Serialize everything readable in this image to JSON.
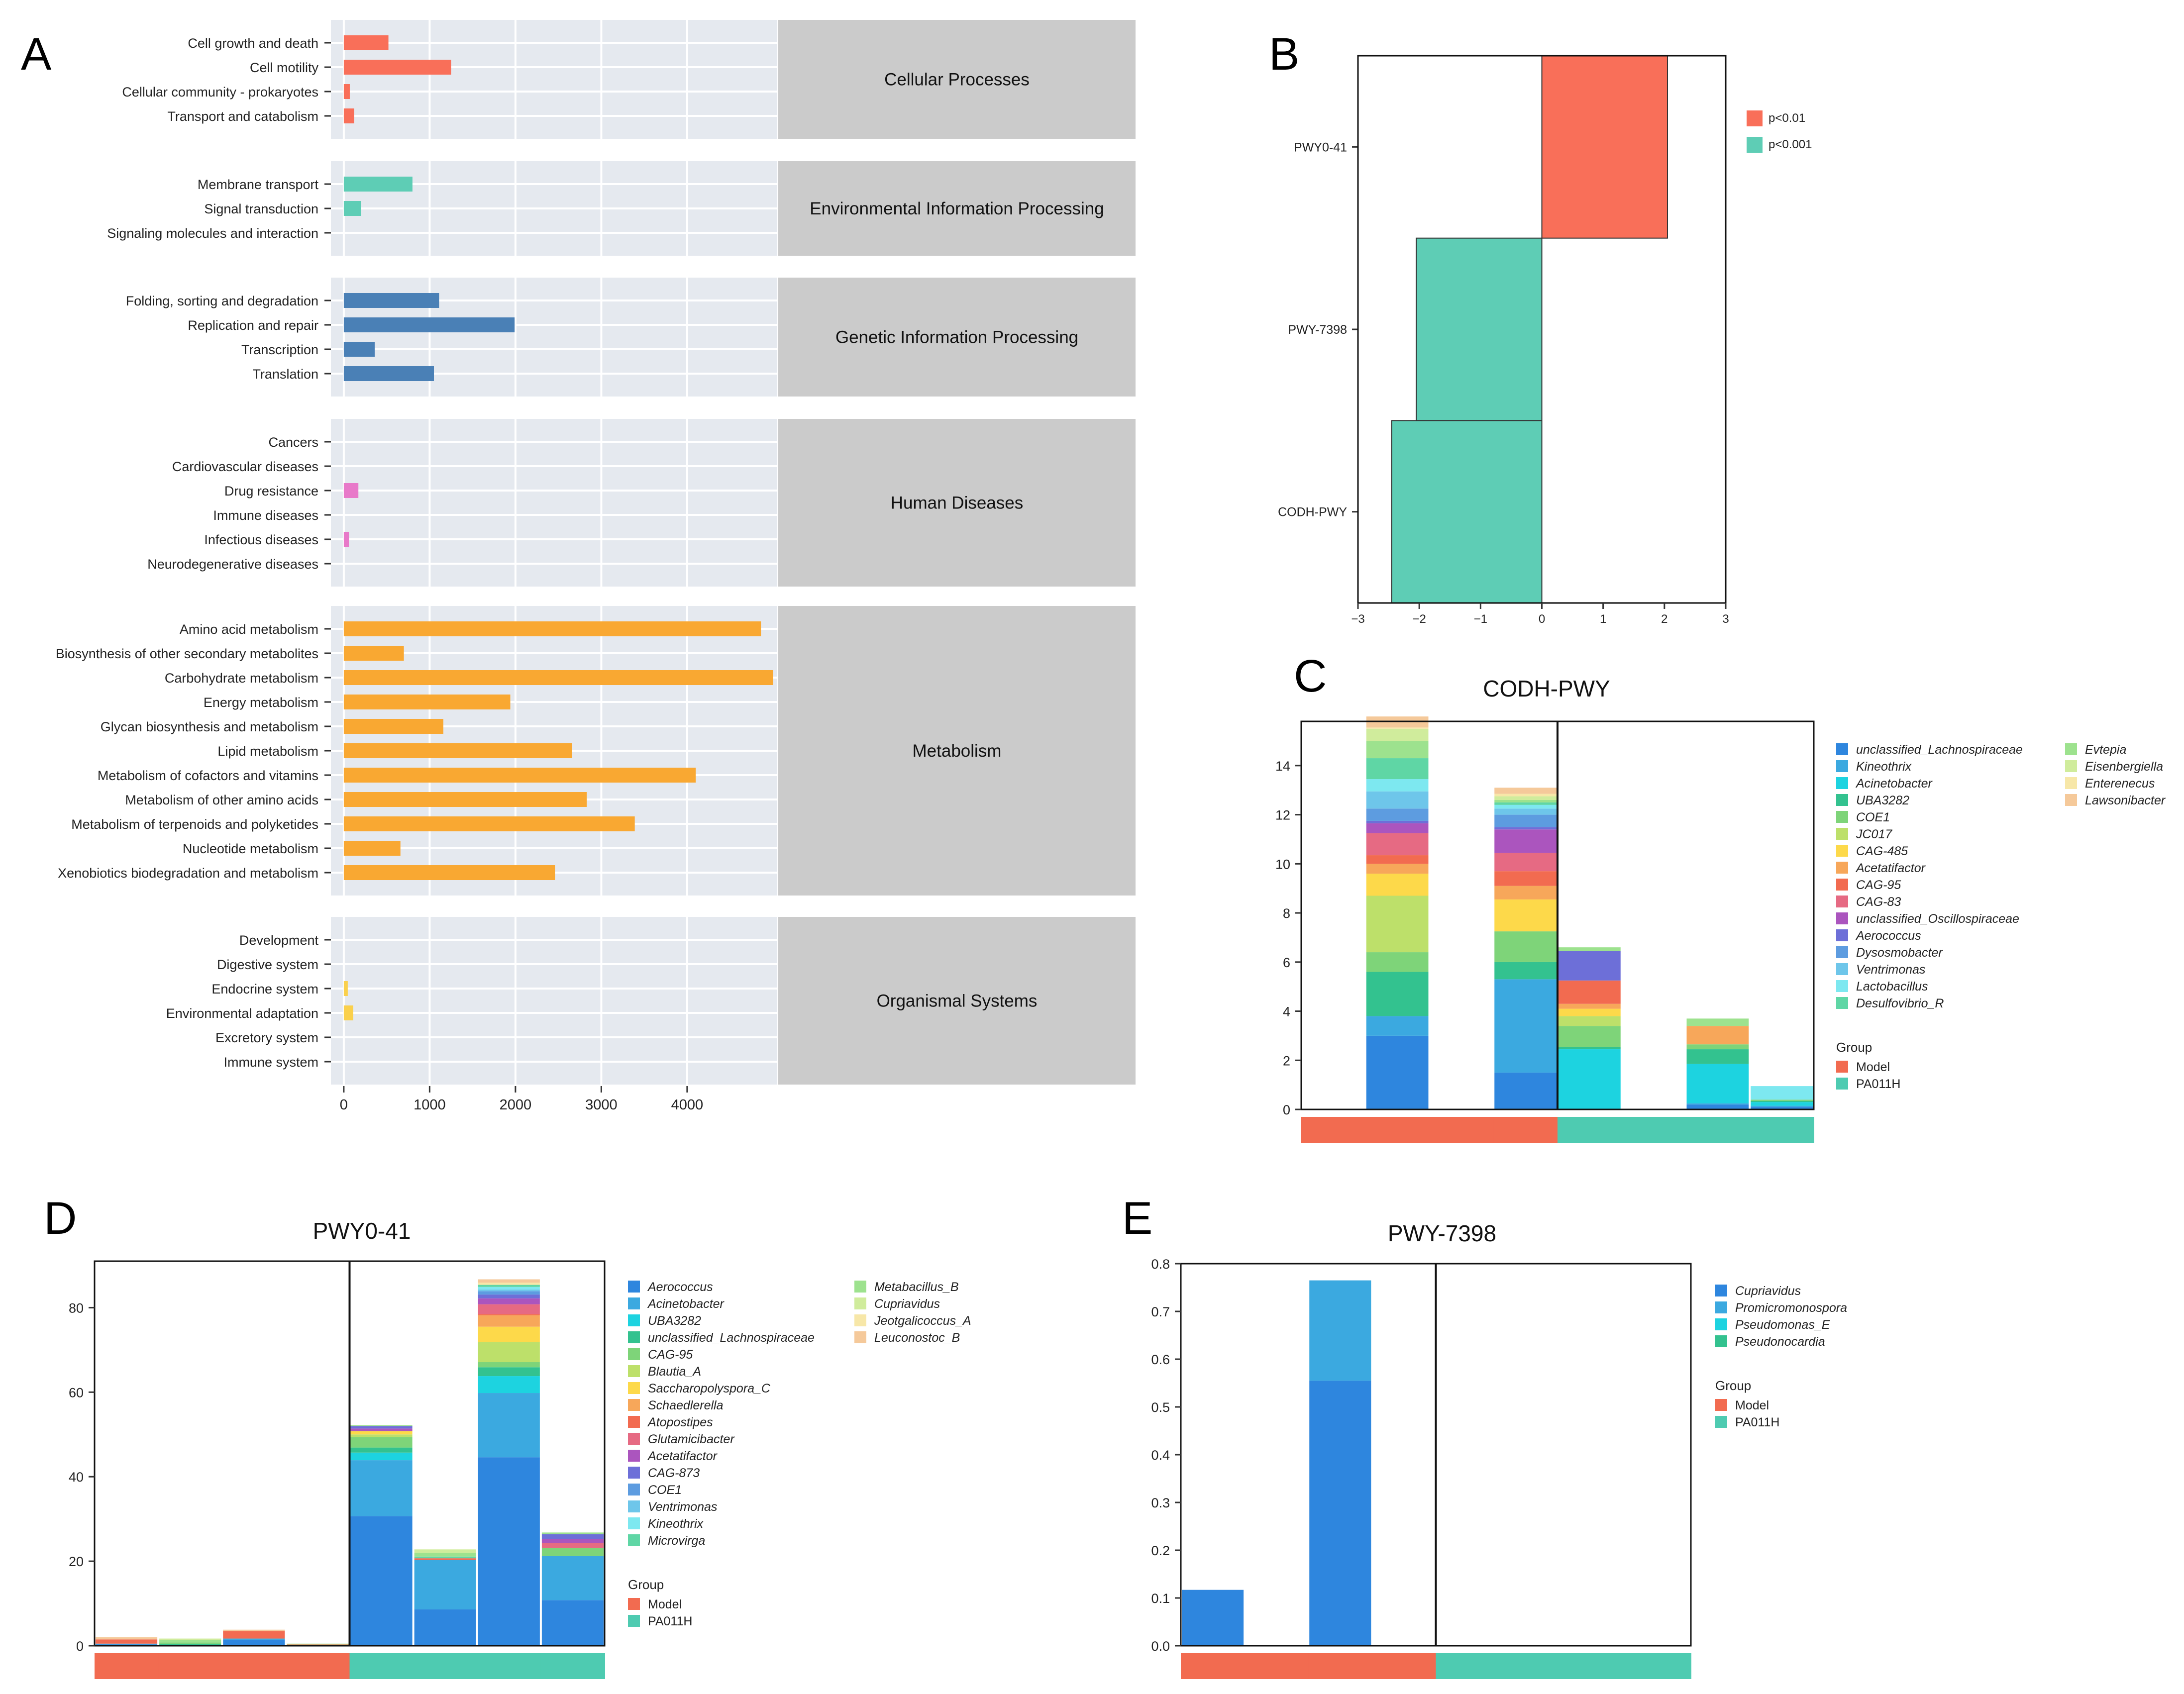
{
  "colors": {
    "model": "#F26B50",
    "pa011h": "#4ECBB1",
    "panel_bg": "#E5E9EF",
    "cat_bg": "#CBCBCB",
    "cellular": "#F96F59",
    "environmental": "#5ECDB5",
    "genetic": "#4A80B6",
    "human": "#E879C9",
    "metabolism": "#F9A832",
    "organismal": "#FAD04C"
  },
  "chart_data": [
    {
      "panel": "A",
      "type": "bar",
      "orientation": "horizontal",
      "xticks": [
        "0",
        "1000",
        "2000",
        "3000",
        "4000"
      ],
      "xlim": [
        -150,
        5050
      ],
      "groups": [
        {
          "name": "Cellular Processes",
          "color_key": "cellular",
          "items": [
            {
              "label": "Cell growth and death",
              "value": 520
            },
            {
              "label": "Cell motility",
              "value": 1250
            },
            {
              "label": "Cellular community - prokaryotes",
              "value": 70
            },
            {
              "label": "Transport and catabolism",
              "value": 120
            }
          ]
        },
        {
          "name": "Environmental Information Processing",
          "color_key": "environmental",
          "items": [
            {
              "label": "Membrane transport",
              "value": 800
            },
            {
              "label": "Signal transduction",
              "value": 200
            },
            {
              "label": "Signaling molecules and interaction",
              "value": 0
            }
          ]
        },
        {
          "name": "Genetic Information Processing",
          "color_key": "genetic",
          "items": [
            {
              "label": "Folding, sorting and degradation",
              "value": 1110
            },
            {
              "label": "Replication and repair",
              "value": 1990
            },
            {
              "label": "Transcription",
              "value": 360
            },
            {
              "label": "Translation",
              "value": 1050
            }
          ]
        },
        {
          "name": "Human Diseases",
          "color_key": "human",
          "items": [
            {
              "label": "Cancers",
              "value": 0
            },
            {
              "label": "Cardiovascular diseases",
              "value": 0
            },
            {
              "label": "Drug resistance",
              "value": 170
            },
            {
              "label": "Immune diseases",
              "value": 0
            },
            {
              "label": "Infectious diseases",
              "value": 60
            },
            {
              "label": "Neurodegenerative diseases",
              "value": 0
            }
          ]
        },
        {
          "name": "Metabolism",
          "color_key": "metabolism",
          "items": [
            {
              "label": "Amino acid metabolism",
              "value": 4860
            },
            {
              "label": "Biosynthesis of other secondary metabolites",
              "value": 700
            },
            {
              "label": "Carbohydrate metabolism",
              "value": 5000
            },
            {
              "label": "Energy metabolism",
              "value": 1940
            },
            {
              "label": "Glycan biosynthesis and metabolism",
              "value": 1160
            },
            {
              "label": "Lipid metabolism",
              "value": 2660
            },
            {
              "label": "Metabolism of cofactors and vitamins",
              "value": 4100
            },
            {
              "label": "Metabolism of other amino acids",
              "value": 2830
            },
            {
              "label": "Metabolism of terpenoids and polyketides",
              "value": 3390
            },
            {
              "label": "Nucleotide metabolism",
              "value": 660
            },
            {
              "label": "Xenobiotics biodegradation and metabolism",
              "value": 2460
            }
          ]
        },
        {
          "name": "Organismal Systems",
          "color_key": "organismal",
          "items": [
            {
              "label": "Development",
              "value": 0
            },
            {
              "label": "Digestive system",
              "value": 0
            },
            {
              "label": "Endocrine system",
              "value": 40
            },
            {
              "label": "Environmental adaptation",
              "value": 110
            },
            {
              "label": "Excretory system",
              "value": 0
            },
            {
              "label": "Immune system",
              "value": 0
            }
          ]
        }
      ]
    },
    {
      "panel": "B",
      "type": "bar",
      "orientation": "horizontal",
      "xlim": [
        -3,
        3
      ],
      "xticks": [
        "−3",
        "−2",
        "−1",
        "0",
        "1",
        "2",
        "3"
      ],
      "bars": [
        {
          "label": "PWY0-41",
          "value": 2.05,
          "sig": "p<0.01"
        },
        {
          "label": "PWY-7398",
          "value": -2.05,
          "sig": "p<0.001"
        },
        {
          "label": "CODH-PWY",
          "value": -2.45,
          "sig": "p<0.001"
        }
      ],
      "legend": [
        {
          "label": "p<0.01",
          "color": "#F96F59"
        },
        {
          "label": "p<0.001",
          "color": "#5ECDB5"
        }
      ]
    },
    {
      "panel": "C",
      "type": "bar",
      "stacked": true,
      "title": "CODH-PWY",
      "ylim": [
        0,
        15.8
      ],
      "yticks": [
        "0",
        "2",
        "4",
        "6",
        "8",
        "10",
        "12",
        "14"
      ],
      "n_samples": 8,
      "divider_after": 4,
      "groups_bar": [
        "Model",
        "Model",
        "Model",
        "Model",
        "PA011H",
        "PA011H",
        "PA011H",
        "PA011H"
      ],
      "species": [
        {
          "name": "unclassified_Lachnospiraceae",
          "color": "#2E86DE"
        },
        {
          "name": "Kineothrix",
          "color": "#3BA9E0"
        },
        {
          "name": "Acinetobacter",
          "color": "#1DD3E0"
        },
        {
          "name": "UBA3282",
          "color": "#33C28F"
        },
        {
          "name": "COE1",
          "color": "#7ED479"
        },
        {
          "name": "JC017",
          "color": "#BDE06A"
        },
        {
          "name": "CAG-485",
          "color": "#FDD94A"
        },
        {
          "name": "Acetatifactor",
          "color": "#F7A75A"
        },
        {
          "name": "CAG-95",
          "color": "#F26B50"
        },
        {
          "name": "CAG-83",
          "color": "#E66A83"
        },
        {
          "name": "unclassified_Oscillospiraceae",
          "color": "#AB55BE"
        },
        {
          "name": "Aerococcus",
          "color": "#6D6FD8"
        },
        {
          "name": "Dysosmobacter",
          "color": "#5D9CE0"
        },
        {
          "name": "Ventrimonas",
          "color": "#6EC6EA"
        },
        {
          "name": "Lactobacillus",
          "color": "#7DE8F0"
        },
        {
          "name": "Desulfovibrio_R",
          "color": "#5FD6A5"
        },
        {
          "name": "Evtepia",
          "color": "#9DE28E"
        },
        {
          "name": "Eisenbergiella",
          "color": "#D0EC9C"
        },
        {
          "name": "Enterenecus",
          "color": "#F7E7A8"
        },
        {
          "name": "Lawsonibacter",
          "color": "#F5C99A"
        }
      ],
      "samples": [
        [],
        [
          3.0,
          0.8,
          0,
          1.8,
          0.8,
          2.3,
          0.9,
          0.4,
          0.35,
          0.9,
          0.4,
          0.1,
          0.5,
          0.7,
          0.5,
          0.85,
          0.7,
          0.5,
          0.05,
          0.45
        ],
        [],
        [
          1.5,
          3.8,
          0,
          0.7,
          1.25,
          0,
          1.3,
          0.55,
          0.6,
          0.75,
          0.95,
          0.1,
          0.5,
          0.25,
          0.15,
          0.1,
          0.1,
          0.15,
          0.1,
          0.25
        ],
        [
          0,
          0,
          2.45,
          0.1,
          0.85,
          0.4,
          0.3,
          0.2,
          0.95,
          0,
          0,
          1.2,
          0,
          0,
          0,
          0,
          0.15,
          0,
          0,
          0
        ],
        [],
        [
          0.2,
          0.05,
          1.6,
          0.6,
          0.2,
          0,
          0,
          0.75,
          0,
          0,
          0,
          0,
          0,
          0,
          0,
          0,
          0.3,
          0,
          0,
          0
        ],
        [
          0.1,
          0.05,
          0.15,
          0.05,
          0.05,
          0,
          0,
          0,
          0,
          0,
          0,
          0,
          0,
          0,
          0.55,
          0,
          0,
          0,
          0,
          0
        ]
      ]
    },
    {
      "panel": "D",
      "type": "bar",
      "stacked": true,
      "title": "PWY0-41",
      "ylim": [
        0,
        91
      ],
      "yticks": [
        "0",
        "20",
        "40",
        "60",
        "80"
      ],
      "n_samples": 8,
      "divider_after": 4,
      "groups_bar": [
        "Model",
        "Model",
        "Model",
        "Model",
        "PA011H",
        "PA011H",
        "PA011H",
        "PA011H"
      ],
      "species": [
        {
          "name": "Aerococcus",
          "color": "#2E86DE"
        },
        {
          "name": "Acinetobacter",
          "color": "#3BA9E0"
        },
        {
          "name": "UBA3282",
          "color": "#1DD3E0"
        },
        {
          "name": "unclassified_Lachnospiraceae",
          "color": "#33C28F"
        },
        {
          "name": "CAG-95",
          "color": "#7ED479"
        },
        {
          "name": "Blautia_A",
          "color": "#BDE06A"
        },
        {
          "name": "Saccharopolyspora_C",
          "color": "#FDD94A"
        },
        {
          "name": "Schaedlerella",
          "color": "#F7A75A"
        },
        {
          "name": "Atopostipes",
          "color": "#F26B50"
        },
        {
          "name": "Glutamicibacter",
          "color": "#E66A83"
        },
        {
          "name": "Acetatifactor",
          "color": "#AB55BE"
        },
        {
          "name": "CAG-873",
          "color": "#6D6FD8"
        },
        {
          "name": "COE1",
          "color": "#5D9CE0"
        },
        {
          "name": "Ventrimonas",
          "color": "#6EC6EA"
        },
        {
          "name": "Kineothrix",
          "color": "#7DE8F0"
        },
        {
          "name": "Microvirga",
          "color": "#5FD6A5"
        },
        {
          "name": "Metabacillus_B",
          "color": "#9DE28E"
        },
        {
          "name": "Cupriavidus",
          "color": "#D0EC9C"
        },
        {
          "name": "Jeotgalicoccus_A",
          "color": "#F7E7A8"
        },
        {
          "name": "Leuconostoc_B",
          "color": "#F5C99A"
        }
      ],
      "samples": [
        [
          0.3,
          0.2,
          0,
          0,
          0,
          0,
          0,
          0,
          1.0,
          0,
          0,
          0,
          0,
          0,
          0,
          0,
          0,
          0,
          0,
          0.5
        ],
        [
          0,
          0,
          0,
          0.4,
          0.4,
          0,
          0,
          0,
          0,
          0,
          0,
          0,
          0,
          0,
          0,
          0,
          0.6,
          0.3,
          0,
          0
        ],
        [
          1.4,
          0.3,
          0,
          0,
          0,
          0,
          0,
          0,
          1.8,
          0,
          0,
          0,
          0,
          0,
          0,
          0,
          0,
          0,
          0,
          0.3
        ],
        [
          0,
          0,
          0,
          0,
          0,
          0,
          0,
          0,
          0.3,
          0,
          0,
          0,
          0,
          0,
          0,
          0,
          0.2,
          0,
          0,
          0
        ],
        [
          30.7,
          13.2,
          1.8,
          1.2,
          2.5,
          0.6,
          0.8,
          0,
          0,
          0,
          0.6,
          0.6,
          0,
          0,
          0,
          0,
          0.2,
          0,
          0,
          0
        ],
        [
          8.6,
          11.7,
          0,
          0,
          0,
          0,
          0,
          0,
          0.4,
          0,
          0,
          0,
          0,
          0,
          0,
          0.4,
          0.9,
          0.8,
          0,
          0
        ],
        [
          44.6,
          15.2,
          4.0,
          2.1,
          1.2,
          4.8,
          3.6,
          2.7,
          0.3,
          2.3,
          1.4,
          0.9,
          0.8,
          0.4,
          0.6,
          0.5,
          0,
          0,
          0.5,
          0.8
        ],
        [
          10.8,
          10.4,
          0,
          0,
          1.9,
          0,
          0,
          0,
          0,
          1.2,
          0.9,
          1.2,
          0,
          0,
          0,
          0,
          0.4,
          0,
          0,
          0
        ]
      ]
    },
    {
      "panel": "E",
      "type": "bar",
      "stacked": true,
      "title": "PWY-7398",
      "ylim": [
        0,
        0.8
      ],
      "yticks": [
        "0.0",
        "0.1",
        "0.2",
        "0.3",
        "0.4",
        "0.5",
        "0.6",
        "0.7",
        "0.8"
      ],
      "n_samples": 8,
      "divider_after": 4,
      "groups_bar": [
        "Model",
        "Model",
        "Model",
        "Model",
        "PA011H",
        "PA011H",
        "PA011H",
        "PA011H"
      ],
      "species": [
        {
          "name": "Cupriavidus",
          "color": "#2E86DE"
        },
        {
          "name": "Promicromonospora",
          "color": "#3BA9E0"
        },
        {
          "name": "Pseudomonas_E",
          "color": "#1DD3E0"
        },
        {
          "name": "Pseudonocardia",
          "color": "#33C28F"
        }
      ],
      "samples": [
        [
          0.117,
          0,
          0,
          0
        ],
        [],
        [
          0.555,
          0.21,
          0,
          0
        ],
        [],
        [],
        [],
        [],
        []
      ]
    }
  ],
  "labels": {
    "panel_a": "A",
    "panel_b": "B",
    "panel_c": "C",
    "panel_d": "D",
    "panel_e": "E",
    "group_title": "Group",
    "group_model": "Model",
    "group_pa011h": "PA011H"
  }
}
